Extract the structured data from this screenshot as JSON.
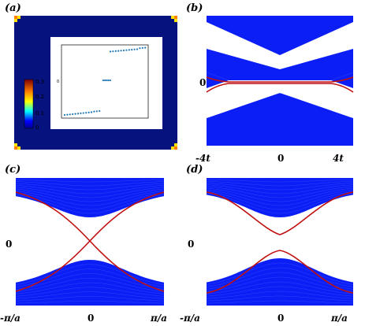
{
  "panels": {
    "a": {
      "label": "(a)",
      "colorbar_ticks": [
        "0.3",
        "0.2",
        "0.1",
        "0"
      ],
      "inset_ytick": "0"
    },
    "b": {
      "label": "(b)",
      "ytick": "0",
      "xticks": [
        "-4t",
        "0",
        "4t"
      ]
    },
    "c": {
      "label": "(c)",
      "ytick": "0",
      "xticks": [
        "-π/a",
        "0",
        "π/a"
      ]
    },
    "d": {
      "label": "(d)",
      "ytick": "0",
      "xticks": [
        "-π/a",
        "0",
        "π/a"
      ]
    }
  },
  "colors": {
    "band": "#0a1ef5",
    "edge_state": "#c01010",
    "map_background": "#06127e"
  }
}
